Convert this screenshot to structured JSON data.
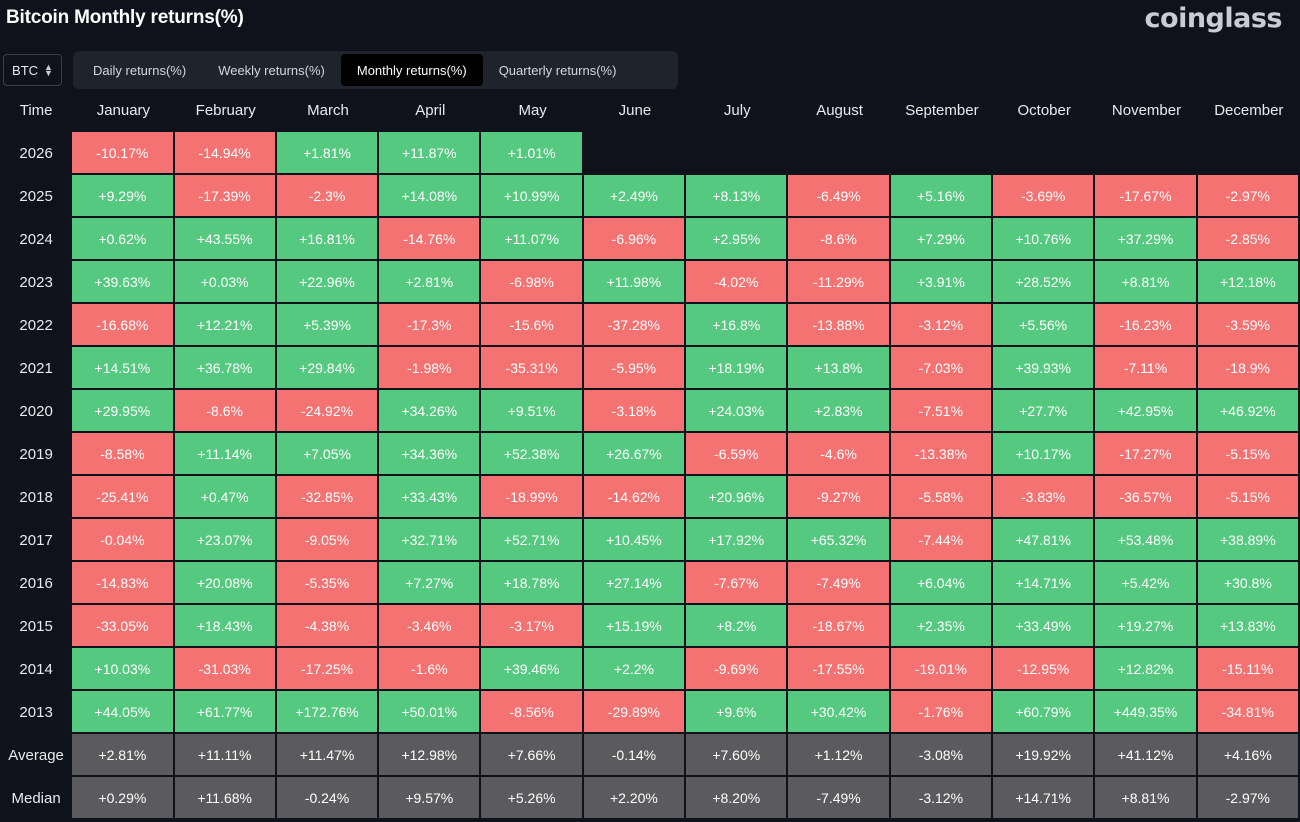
{
  "header": {
    "title": "Bitcoin Monthly returns(%)",
    "brand": "coinglass"
  },
  "coin_select": {
    "value": "BTC"
  },
  "tabs": [
    {
      "label": "Daily returns(%)",
      "active": false
    },
    {
      "label": "Weekly returns(%)",
      "active": false
    },
    {
      "label": "Monthly returns(%)",
      "active": true
    },
    {
      "label": "Quarterly returns(%)",
      "active": false
    }
  ],
  "table": {
    "time_header": "Time",
    "months": [
      "January",
      "February",
      "March",
      "April",
      "May",
      "June",
      "July",
      "August",
      "September",
      "October",
      "November",
      "December"
    ],
    "rows": [
      {
        "year": "2026",
        "values": [
          "-10.17%",
          "-14.94%",
          "+1.81%",
          "+11.87%",
          "+1.01%",
          "",
          "",
          "",
          "",
          "",
          "",
          ""
        ]
      },
      {
        "year": "2025",
        "values": [
          "+9.29%",
          "-17.39%",
          "-2.3%",
          "+14.08%",
          "+10.99%",
          "+2.49%",
          "+8.13%",
          "-6.49%",
          "+5.16%",
          "-3.69%",
          "-17.67%",
          "-2.97%"
        ]
      },
      {
        "year": "2024",
        "values": [
          "+0.62%",
          "+43.55%",
          "+16.81%",
          "-14.76%",
          "+11.07%",
          "-6.96%",
          "+2.95%",
          "-8.6%",
          "+7.29%",
          "+10.76%",
          "+37.29%",
          "-2.85%"
        ]
      },
      {
        "year": "2023",
        "values": [
          "+39.63%",
          "+0.03%",
          "+22.96%",
          "+2.81%",
          "-6.98%",
          "+11.98%",
          "-4.02%",
          "-11.29%",
          "+3.91%",
          "+28.52%",
          "+8.81%",
          "+12.18%"
        ]
      },
      {
        "year": "2022",
        "values": [
          "-16.68%",
          "+12.21%",
          "+5.39%",
          "-17.3%",
          "-15.6%",
          "-37.28%",
          "+16.8%",
          "-13.88%",
          "-3.12%",
          "+5.56%",
          "-16.23%",
          "-3.59%"
        ]
      },
      {
        "year": "2021",
        "values": [
          "+14.51%",
          "+36.78%",
          "+29.84%",
          "-1.98%",
          "-35.31%",
          "-5.95%",
          "+18.19%",
          "+13.8%",
          "-7.03%",
          "+39.93%",
          "-7.11%",
          "-18.9%"
        ]
      },
      {
        "year": "2020",
        "values": [
          "+29.95%",
          "-8.6%",
          "-24.92%",
          "+34.26%",
          "+9.51%",
          "-3.18%",
          "+24.03%",
          "+2.83%",
          "-7.51%",
          "+27.7%",
          "+42.95%",
          "+46.92%"
        ]
      },
      {
        "year": "2019",
        "values": [
          "-8.58%",
          "+11.14%",
          "+7.05%",
          "+34.36%",
          "+52.38%",
          "+26.67%",
          "-6.59%",
          "-4.6%",
          "-13.38%",
          "+10.17%",
          "-17.27%",
          "-5.15%"
        ]
      },
      {
        "year": "2018",
        "values": [
          "-25.41%",
          "+0.47%",
          "-32.85%",
          "+33.43%",
          "-18.99%",
          "-14.62%",
          "+20.96%",
          "-9.27%",
          "-5.58%",
          "-3.83%",
          "-36.57%",
          "-5.15%"
        ]
      },
      {
        "year": "2017",
        "values": [
          "-0.04%",
          "+23.07%",
          "-9.05%",
          "+32.71%",
          "+52.71%",
          "+10.45%",
          "+17.92%",
          "+65.32%",
          "-7.44%",
          "+47.81%",
          "+53.48%",
          "+38.89%"
        ]
      },
      {
        "year": "2016",
        "values": [
          "-14.83%",
          "+20.08%",
          "-5.35%",
          "+7.27%",
          "+18.78%",
          "+27.14%",
          "-7.67%",
          "-7.49%",
          "+6.04%",
          "+14.71%",
          "+5.42%",
          "+30.8%"
        ]
      },
      {
        "year": "2015",
        "values": [
          "-33.05%",
          "+18.43%",
          "-4.38%",
          "-3.46%",
          "-3.17%",
          "+15.19%",
          "+8.2%",
          "-18.67%",
          "+2.35%",
          "+33.49%",
          "+19.27%",
          "+13.83%"
        ]
      },
      {
        "year": "2014",
        "values": [
          "+10.03%",
          "-31.03%",
          "-17.25%",
          "-1.6%",
          "+39.46%",
          "+2.2%",
          "-9.69%",
          "-17.55%",
          "-19.01%",
          "-12.95%",
          "+12.82%",
          "-15.11%"
        ]
      },
      {
        "year": "2013",
        "values": [
          "+44.05%",
          "+61.77%",
          "+172.76%",
          "+50.01%",
          "-8.56%",
          "-29.89%",
          "+9.6%",
          "+30.42%",
          "-1.76%",
          "+60.79%",
          "+449.35%",
          "-34.81%"
        ]
      }
    ],
    "stats": [
      {
        "label": "Average",
        "values": [
          "+2.81%",
          "+11.11%",
          "+11.47%",
          "+12.98%",
          "+7.66%",
          "-0.14%",
          "+7.60%",
          "+1.12%",
          "-3.08%",
          "+19.92%",
          "+41.12%",
          "+4.16%"
        ]
      },
      {
        "label": "Median",
        "values": [
          "+0.29%",
          "+11.68%",
          "-0.24%",
          "+9.57%",
          "+5.26%",
          "+2.20%",
          "+8.20%",
          "-7.49%",
          "-3.12%",
          "+14.71%",
          "+8.81%",
          "-2.97%"
        ]
      }
    ]
  },
  "colors": {
    "positive": "#55c97f",
    "negative": "#f57272",
    "stat": "#5b5b5e",
    "background": "#0f121a"
  }
}
